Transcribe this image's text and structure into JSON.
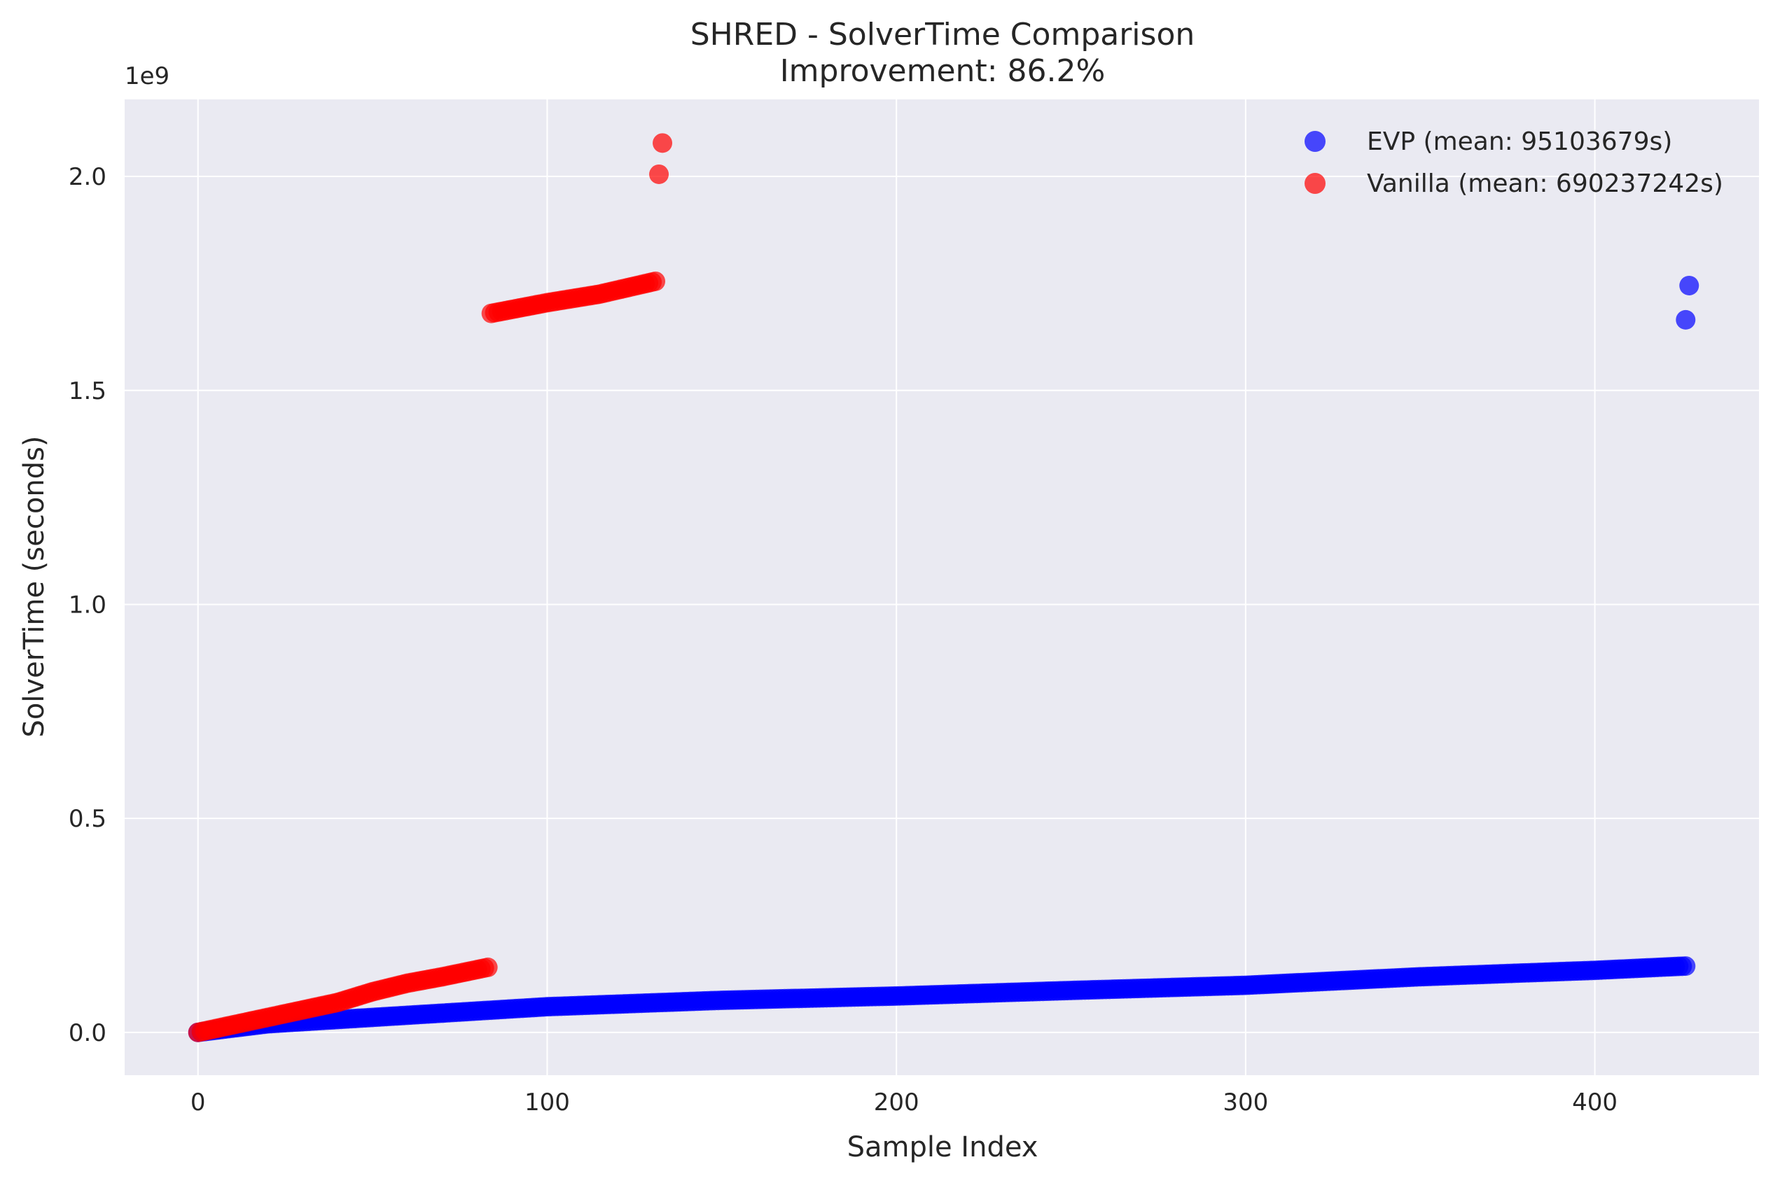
{
  "chart_data": {
    "type": "scatter",
    "title": "SHRED - SolverTime Comparison",
    "subtitle": "Improvement: 86.2%",
    "xlabel": "Sample Index",
    "ylabel": "SolverTime (seconds)",
    "y_multiplier": "1e9",
    "xlim": [
      -21,
      447
    ],
    "ylim": [
      -0.1,
      2.18
    ],
    "x_ticks": [
      0,
      100,
      200,
      300,
      400
    ],
    "x_tick_labels": [
      "0",
      "100",
      "200",
      "300",
      "400"
    ],
    "y_ticks": [
      0.0,
      0.5,
      1.0,
      1.5,
      2.0
    ],
    "y_tick_labels": [
      "0.0",
      "0.5",
      "1.0",
      "1.5",
      "2.0"
    ],
    "grid": true,
    "legend_position": "top-right",
    "series": [
      {
        "name": "EVP (mean: 95103679s)",
        "color": "#0000ff",
        "segments": [
          {
            "x_start": 0,
            "x_end": 426,
            "points": [
              [
                0,
                0.0
              ],
              [
                10,
                0.01
              ],
              [
                20,
                0.02
              ],
              [
                40,
                0.03
              ],
              [
                60,
                0.04
              ],
              [
                80,
                0.05
              ],
              [
                100,
                0.06
              ],
              [
                150,
                0.075
              ],
              [
                200,
                0.085
              ],
              [
                250,
                0.098
              ],
              [
                300,
                0.11
              ],
              [
                350,
                0.13
              ],
              [
                400,
                0.145
              ],
              [
                426,
                0.155
              ]
            ]
          }
        ],
        "points": [
          [
            426,
            1.665
          ],
          [
            427,
            1.745
          ]
        ]
      },
      {
        "name": "Vanilla (mean: 690237242s)",
        "color": "#ff0000",
        "segments": [
          {
            "x_start": 0,
            "x_end": 83,
            "points": [
              [
                0,
                0.0
              ],
              [
                20,
                0.035
              ],
              [
                40,
                0.07
              ],
              [
                50,
                0.095
              ],
              [
                60,
                0.115
              ],
              [
                70,
                0.13
              ],
              [
                83,
                0.152
              ]
            ]
          },
          {
            "x_start": 84,
            "x_end": 131,
            "points": [
              [
                84,
                1.68
              ],
              [
                100,
                1.705
              ],
              [
                115,
                1.725
              ],
              [
                131,
                1.755
              ]
            ]
          }
        ],
        "points": [
          [
            132,
            2.005
          ],
          [
            133,
            2.078
          ]
        ]
      }
    ]
  }
}
